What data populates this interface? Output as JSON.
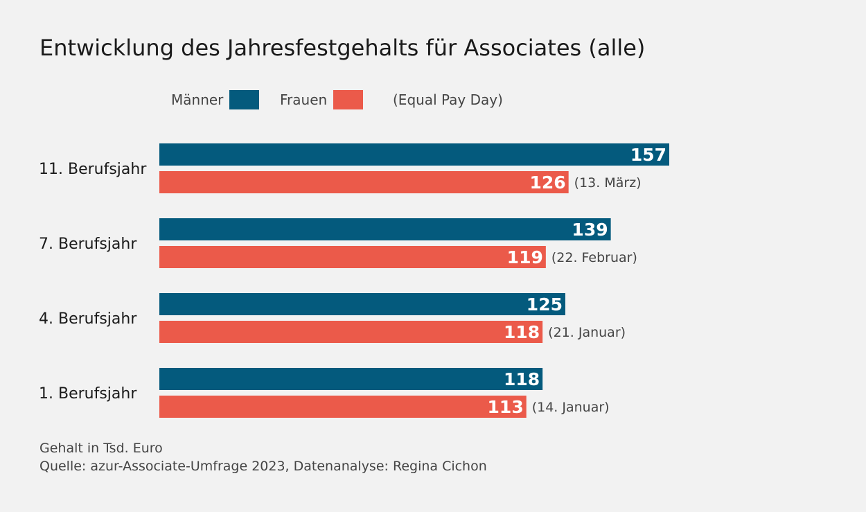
{
  "chart_data": {
    "type": "bar",
    "orientation": "horizontal",
    "title": "Entwicklung des Jahresfestgehalts für Associates (alle)",
    "categories": [
      "11. Berufsjahr",
      "7. Berufsjahr",
      "4. Berufsjahr",
      "1. Berufsjahr"
    ],
    "series": [
      {
        "name": "Männer",
        "color": "#045a7d",
        "values": [
          157,
          139,
          125,
          118
        ]
      },
      {
        "name": "Frauen",
        "color": "#eb5a4a",
        "values": [
          126,
          119,
          118,
          113
        ]
      }
    ],
    "annotations": [
      "(13. März)",
      "(22. Februar)",
      "(21. Januar)",
      "(14. Januar)"
    ],
    "legend_note": "(Equal Pay Day)",
    "legend_position": "top",
    "grid": false,
    "xlim": [
      0,
      157
    ]
  },
  "footer": {
    "unit": "Gehalt in Tsd. Euro",
    "source": "Quelle: azur-Associate-Umfrage 2023, Datenanalyse: Regina Cichon"
  }
}
